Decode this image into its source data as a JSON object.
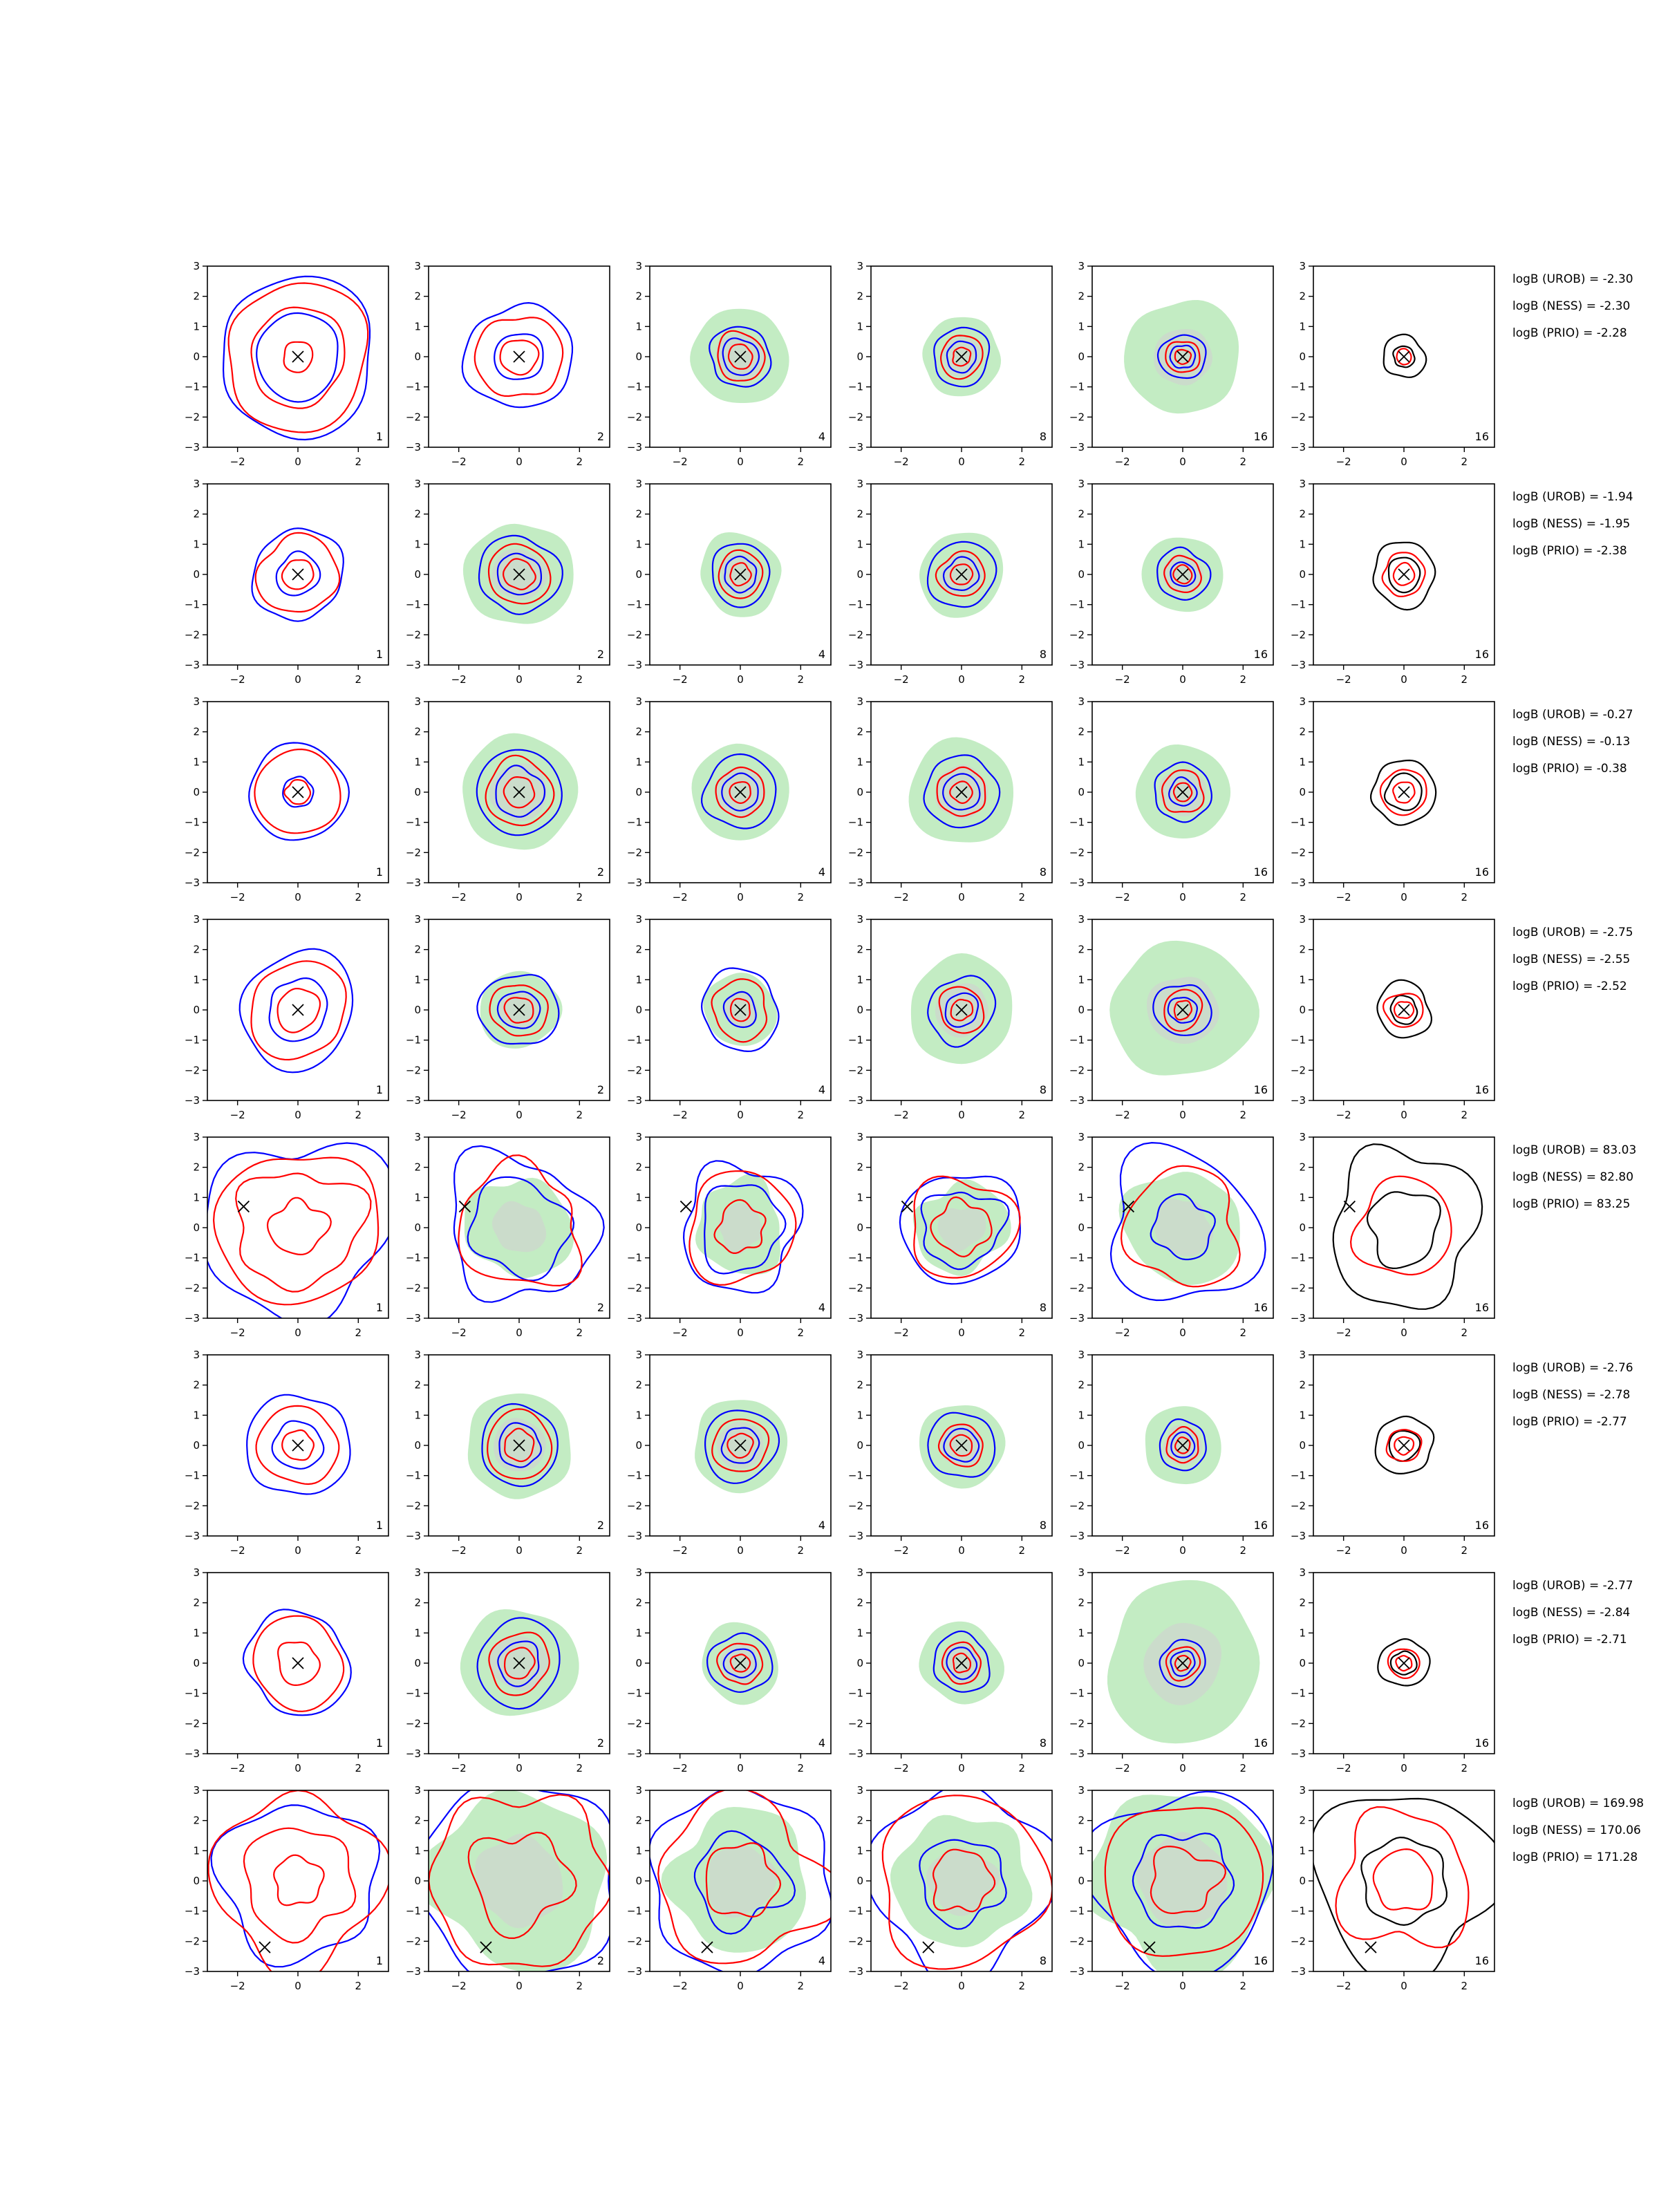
{
  "chart_data": {
    "type": "contour-grid",
    "rows": 8,
    "columns": 6,
    "column_counts": [
      "1",
      "2",
      "4",
      "8",
      "16",
      "16"
    ],
    "axis": {
      "xlim": [
        -3,
        3
      ],
      "ylim": [
        -3,
        3
      ],
      "x_ticks": [
        -2,
        0,
        2
      ],
      "y_ticks": [
        -3,
        -2,
        -1,
        0,
        1,
        2,
        3
      ],
      "x_tick_labels": [
        "−2",
        "0",
        "2"
      ],
      "y_tick_labels": [
        "−3",
        "−2",
        "−1",
        "0",
        "1",
        "2",
        "3"
      ]
    },
    "colors": {
      "fill_outer": "#c3ecc3",
      "fill_inner": "#cfd6cf",
      "contour_blue": "#0000ff",
      "contour_red": "#ff0000",
      "contour_black": "#000000",
      "marker": "#000000"
    },
    "panels": [
      {
        "row": 1,
        "marker": [
          0,
          0
        ],
        "annotations": [
          "logB (UROB) = -2.30",
          "logB (NESS) = -2.30",
          "logB (PRIO) = -2.28"
        ],
        "scales": [
          {
            "fill": 0,
            "blue": [
              1.4,
              2.6
            ],
            "red": [
              0.5,
              1.6,
              2.4
            ]
          },
          {
            "fill": 0,
            "blue": [
              0.8,
              1.75
            ],
            "red": [
              0.6,
              1.4
            ]
          },
          {
            "fill": 1.6,
            "blue": [
              0.6,
              1.0
            ],
            "red": [
              0.4,
              0.8
            ]
          },
          {
            "fill": 1.3,
            "blue": [
              0.5,
              0.95
            ],
            "red": [
              0.3,
              0.7
            ]
          },
          {
            "fill": 1.9,
            "blue": [
              0.4,
              0.75
            ],
            "red": [
              0.25,
              0.55
            ]
          },
          {
            "fill": 0,
            "black": [
              0.35,
              0.7
            ],
            "red": [
              0.25
            ]
          }
        ]
      },
      {
        "row": 2,
        "marker": [
          0,
          0
        ],
        "annotations": [
          "logB (UROB) = -1.94",
          "logB (NESS) = -1.95",
          "logB (PRIO) = -2.38"
        ],
        "scales": [
          {
            "fill": 0,
            "blue": [
              0.7,
              1.5
            ],
            "red": [
              0.5,
              1.3
            ]
          },
          {
            "fill": 1.75,
            "blue": [
              0.7,
              1.3
            ],
            "red": [
              0.5,
              1.0
            ]
          },
          {
            "fill": 1.35,
            "blue": [
              0.55,
              1.0
            ],
            "red": [
              0.35,
              0.75
            ]
          },
          {
            "fill": 1.4,
            "blue": [
              0.55,
              1.1
            ],
            "red": [
              0.35,
              0.75
            ]
          },
          {
            "fill": 1.3,
            "blue": [
              0.4,
              0.85
            ],
            "red": [
              0.3,
              0.6
            ]
          },
          {
            "fill": 0,
            "black": [
              0.55,
              1.05
            ],
            "red": [
              0.35,
              0.7
            ]
          }
        ]
      },
      {
        "row": 3,
        "marker": [
          0,
          0
        ],
        "annotations": [
          "logB (UROB) = -0.27",
          "logB (NESS) = -0.13",
          "logB (PRIO) = -0.38"
        ],
        "scales": [
          {
            "fill": 0,
            "blue": [
              0.5,
              1.6
            ],
            "red": [
              0.4,
              1.4
            ]
          },
          {
            "fill": 1.9,
            "blue": [
              0.8,
              1.4
            ],
            "red": [
              0.5,
              1.1
            ]
          },
          {
            "fill": 1.6,
            "blue": [
              0.6,
              1.2
            ],
            "red": [
              0.35,
              0.8
            ]
          },
          {
            "fill": 1.75,
            "blue": [
              0.6,
              1.2
            ],
            "red": [
              0.35,
              0.8
            ]
          },
          {
            "fill": 1.55,
            "blue": [
              0.45,
              0.95
            ],
            "red": [
              0.3,
              0.7
            ]
          },
          {
            "fill": 0,
            "black": [
              0.6,
              1.05
            ],
            "red": [
              0.35,
              0.75
            ]
          }
        ]
      },
      {
        "row": 4,
        "marker": [
          0,
          0
        ],
        "annotations": [
          "logB (UROB) = -2.75",
          "logB (NESS) = -2.55",
          "logB (PRIO) = -2.52"
        ],
        "scales": [
          {
            "fill": 0,
            "blue": [
              1.0,
              1.9
            ],
            "red": [
              0.7,
              1.6
            ]
          },
          {
            "fill": 1.3,
            "blue": [
              0.65,
              1.25
            ],
            "red": [
              0.45,
              0.9
            ]
          },
          {
            "fill": 1.2,
            "blue": [
              0.55,
              1.3
            ],
            "red": [
              0.35,
              0.95
            ]
          },
          {
            "fill": 1.75,
            "blue": [
              0.55,
              1.1
            ],
            "red": [
              0.35,
              0.75
            ]
          },
          {
            "fill": 2.3,
            "blue": [
              0.45,
              0.9
            ],
            "red": [
              0.3,
              0.65
            ]
          },
          {
            "fill": 0,
            "black": [
              0.45,
              0.9
            ],
            "red": [
              0.3,
              0.6
            ]
          }
        ]
      },
      {
        "row": 5,
        "marker": [
          -1.8,
          0.7
        ],
        "annotations": [
          "logB (UROB) = 83.03",
          "logB (NESS) = 82.80",
          "logB (PRIO) = 83.25"
        ],
        "scales": [
          {
            "fill": 0,
            "blue": [
              3.0
            ],
            "red": [
              0.9,
              2.0,
              2.6
            ]
          },
          {
            "fill": 1.7,
            "blue": [
              1.6,
              2.4
            ],
            "red": [
              2.0
            ]
          },
          {
            "fill": 1.5,
            "blue": [
              1.4,
              2.0
            ],
            "red": [
              0.8,
              1.8
            ]
          },
          {
            "fill": 1.5,
            "blue": [
              1.3,
              1.9
            ],
            "red": [
              0.9,
              1.7
            ]
          },
          {
            "fill": 1.9,
            "blue": [
              1.0,
              2.5
            ],
            "red": [
              1.9
            ]
          },
          {
            "fill": 0,
            "black": [
              2.5,
              1.2
            ],
            "red": [
              1.6
            ]
          }
        ]
      },
      {
        "row": 6,
        "marker": [
          0,
          0
        ],
        "annotations": [
          "logB (UROB) = -2.76",
          "logB (NESS) = -2.78",
          "logB (PRIO) = -2.77"
        ],
        "scales": [
          {
            "fill": 0,
            "blue": [
              0.8,
              1.7
            ],
            "red": [
              0.5,
              1.3
            ]
          },
          {
            "fill": 1.75,
            "blue": [
              0.7,
              1.3
            ],
            "red": [
              0.5,
              1.1
            ]
          },
          {
            "fill": 1.55,
            "blue": [
              0.6,
              1.2
            ],
            "red": [
              0.4,
              0.9
            ]
          },
          {
            "fill": 1.4,
            "blue": [
              0.55,
              1.1
            ],
            "red": [
              0.35,
              0.7
            ]
          },
          {
            "fill": 1.3,
            "blue": [
              0.4,
              0.8
            ],
            "red": [
              0.25,
              0.55
            ]
          },
          {
            "fill": 0,
            "black": [
              0.5,
              0.95
            ],
            "red": [
              0.3,
              0.55
            ]
          }
        ]
      },
      {
        "row": 7,
        "marker": [
          0,
          0
        ],
        "annotations": [
          "logB (UROB) = -2.77",
          "logB (NESS) = -2.84",
          "logB (PRIO) = -2.71"
        ],
        "scales": [
          {
            "fill": 0,
            "blue": [
              1.7
            ],
            "red": [
              0.7,
              1.5
            ]
          },
          {
            "fill": 1.85,
            "blue": [
              0.7,
              1.4
            ],
            "red": [
              0.5,
              1.0
            ]
          },
          {
            "fill": 1.3,
            "blue": [
              0.5,
              1.0
            ],
            "red": [
              0.3,
              0.7
            ]
          },
          {
            "fill": 1.35,
            "blue": [
              0.5,
              0.95
            ],
            "red": [
              0.3,
              0.65
            ]
          },
          {
            "fill": 2.6,
            "blue": [
              0.4,
              0.75
            ],
            "red": [
              0.25,
              0.55
            ]
          },
          {
            "fill": 0,
            "black": [
              0.4,
              0.8
            ],
            "red": [
              0.25,
              0.5
            ]
          }
        ]
      },
      {
        "row": 8,
        "marker": [
          -1.1,
          -2.2
        ],
        "annotations": [
          "logB (UROB) = 169.98",
          "logB (NESS) = 170.06",
          "logB (PRIO) = 171.28"
        ],
        "scales": [
          {
            "fill": 0,
            "blue": [
              2.6
            ],
            "red": [
              0.8,
              1.8,
              2.8
            ]
          },
          {
            "fill": 2.9,
            "blue": [
              3.3
            ],
            "red": [
              1.6,
              2.9
            ]
          },
          {
            "fill": 2.3,
            "blue": [
              1.5,
              3.0
            ],
            "red": [
              1.2,
              2.7
            ]
          },
          {
            "fill": 2.2,
            "blue": [
              1.4,
              3.0
            ],
            "red": [
              1.0,
              2.8
            ]
          },
          {
            "fill": 3.0,
            "blue": [
              1.6,
              3.0
            ],
            "red": [
              1.1,
              2.6
            ]
          },
          {
            "fill": 0,
            "black": [
              1.4,
              3.0
            ],
            "red": [
              1.0,
              2.2
            ]
          }
        ]
      }
    ]
  }
}
